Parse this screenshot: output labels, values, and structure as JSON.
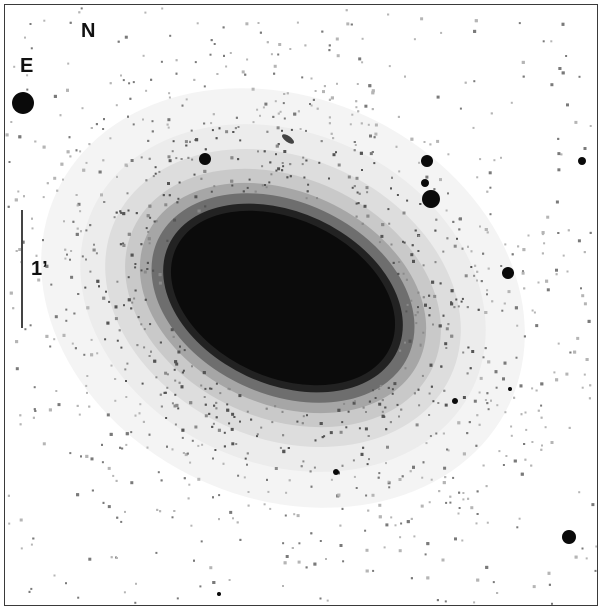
{
  "image": {
    "description_free": true,
    "orientation": {
      "north_label": "N",
      "east_label": "E"
    },
    "scale_bar": {
      "label": "1’"
    },
    "colors": {
      "background": "#ffffff",
      "galaxy_core": "#0b0b0b",
      "border": "#3a3a3a"
    }
  }
}
